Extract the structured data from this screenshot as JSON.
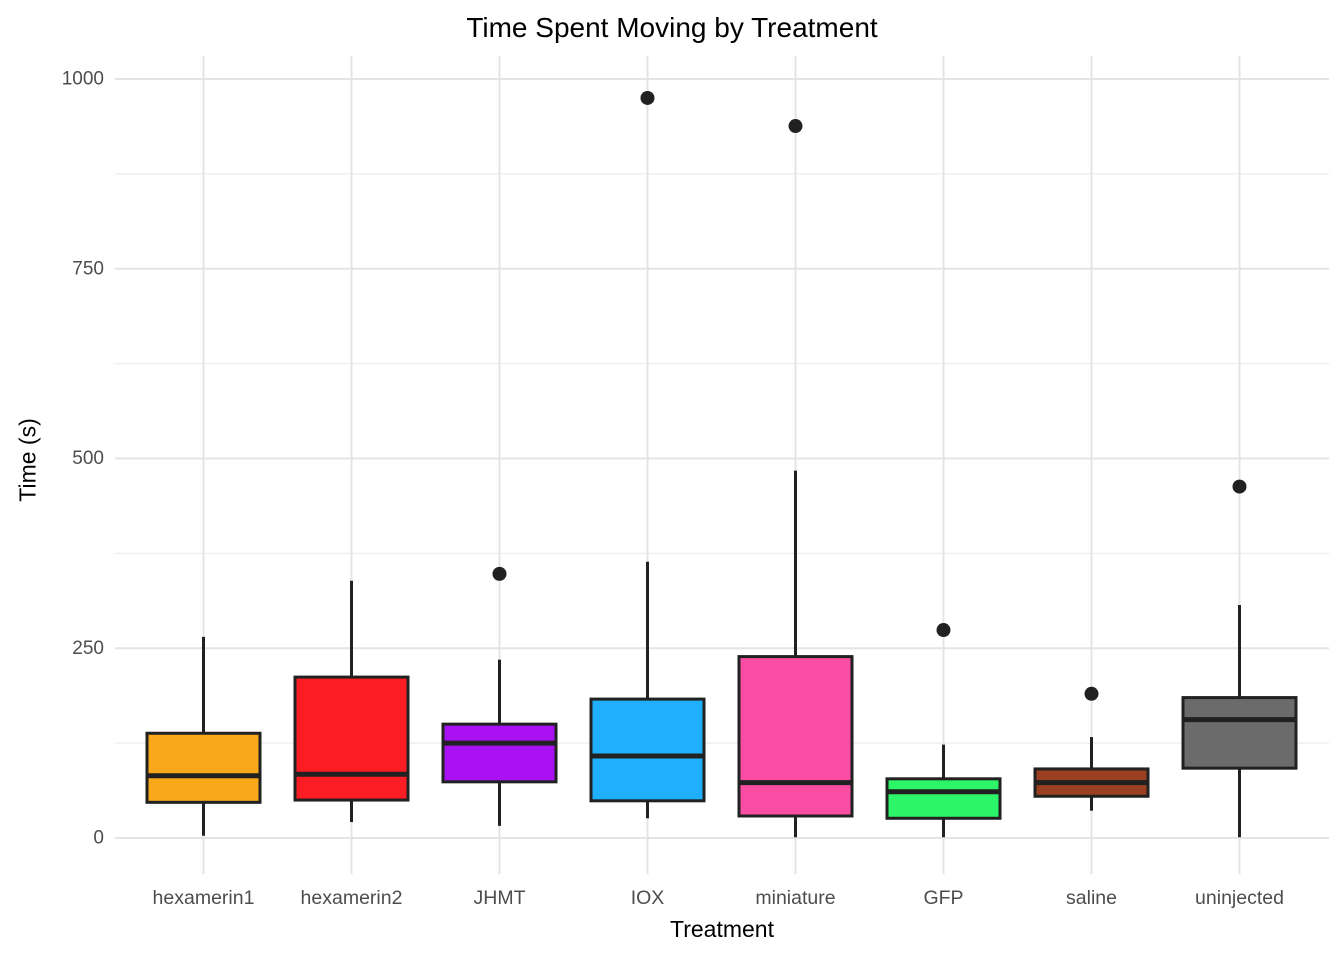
{
  "chart_data": {
    "type": "boxplot",
    "title": "Time Spent Moving by Treatment",
    "xlabel": "Treatment",
    "ylabel": "Time (s)",
    "ylim": [
      0,
      1000
    ],
    "y_ticks": [
      0,
      250,
      500,
      750,
      1000
    ],
    "y_minor_ticks": [
      125,
      375,
      625,
      875
    ],
    "grid": true,
    "legend_position": "none",
    "categories": [
      "hexamerin1",
      "hexamerin2",
      "JHMT",
      "IOX",
      "miniature",
      "GFP",
      "saline",
      "uninjected"
    ],
    "series": [
      {
        "name": "hexamerin1",
        "color": "#F9A81A",
        "whisker_low": 3,
        "q1": 47,
        "median": 82,
        "q3": 138,
        "whisker_high": 265,
        "outliers": []
      },
      {
        "name": "hexamerin2",
        "color": "#FB1D23",
        "whisker_low": 21,
        "q1": 50,
        "median": 84,
        "q3": 212,
        "whisker_high": 339,
        "outliers": []
      },
      {
        "name": "JHMT",
        "color": "#AA11F2",
        "whisker_low": 16,
        "q1": 74,
        "median": 125,
        "q3": 150,
        "whisker_high": 235,
        "outliers": [
          348
        ]
      },
      {
        "name": "IOX",
        "color": "#1FAFFC",
        "whisker_low": 26,
        "q1": 49,
        "median": 108,
        "q3": 183,
        "whisker_high": 364,
        "outliers": [
          975
        ]
      },
      {
        "name": "miniature",
        "color": "#FB4DA4",
        "whisker_low": 1,
        "q1": 29,
        "median": 73,
        "q3": 239,
        "whisker_high": 484,
        "outliers": [
          938
        ]
      },
      {
        "name": "GFP",
        "color": "#2CF567",
        "whisker_low": 1,
        "q1": 26,
        "median": 61,
        "q3": 78,
        "whisker_high": 123,
        "outliers": [
          274
        ]
      },
      {
        "name": "saline",
        "color": "#9B3F21",
        "whisker_low": 36,
        "q1": 55,
        "median": 73,
        "q3": 91,
        "whisker_high": 133,
        "outliers": [
          190
        ]
      },
      {
        "name": "uninjected",
        "color": "#6B6B6B",
        "whisker_low": 1,
        "q1": 92,
        "median": 156,
        "q3": 185,
        "whisker_high": 307,
        "outliers": [
          463
        ]
      }
    ],
    "style": {
      "box_stroke": "#212121",
      "outlier_color": "#212121",
      "grid_major_color": "#E4E4E4",
      "grid_minor_color": "#EFEFEF",
      "tick_label_color": "#4D4D4D",
      "background": "#FFFFFF"
    }
  }
}
